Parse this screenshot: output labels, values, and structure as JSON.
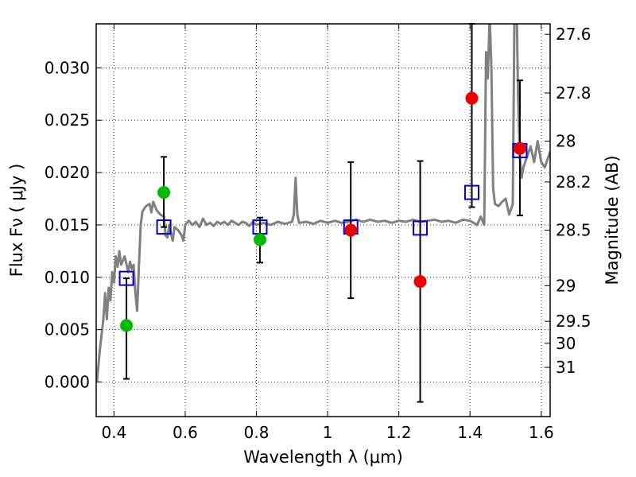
{
  "chart_data": {
    "type": "scatter",
    "xlabel": "Wavelength  λ (μm)",
    "ylabel": "Flux  Fν  ( μJy )",
    "y2label": "Magnitude (AB)",
    "xlim": [
      0.35,
      1.625
    ],
    "ylim": [
      -0.0033,
      0.0342
    ],
    "grid": true,
    "x_ticks": [
      0.4,
      0.6,
      0.8,
      1.0,
      1.2,
      1.4,
      1.6
    ],
    "x_tick_labels": [
      "0.4",
      "0.6",
      "0.8",
      "1",
      "1.2",
      "1.4",
      "1.6"
    ],
    "y_ticks": [
      0.0,
      0.005,
      0.01,
      0.015,
      0.02,
      0.025,
      0.03
    ],
    "y_tick_labels": [
      "0.000",
      "0.005",
      "0.010",
      "0.015",
      "0.020",
      "0.025",
      "0.030"
    ],
    "y2_ticks": [
      {
        "label": "27.6",
        "flux": 0.0332
      },
      {
        "label": "27.8",
        "flux": 0.0276
      },
      {
        "label": "28",
        "flux": 0.023
      },
      {
        "label": "28.2",
        "flux": 0.0191
      },
      {
        "label": "28.5",
        "flux": 0.0145
      },
      {
        "label": "29",
        "flux": 0.0092
      },
      {
        "label": "29.5",
        "flux": 0.0058
      },
      {
        "label": "30",
        "flux": 0.0037
      },
      {
        "label": "31",
        "flux": 0.0014
      }
    ],
    "model_spectrum": {
      "color": "#808080",
      "points": [
        [
          0.352,
          0.0
        ],
        [
          0.36,
          0.003
        ],
        [
          0.37,
          0.006
        ],
        [
          0.375,
          0.0085
        ],
        [
          0.38,
          0.006
        ],
        [
          0.385,
          0.009
        ],
        [
          0.39,
          0.0078
        ],
        [
          0.395,
          0.0105
        ],
        [
          0.4,
          0.0095
        ],
        [
          0.405,
          0.012
        ],
        [
          0.41,
          0.011
        ],
        [
          0.415,
          0.0125
        ],
        [
          0.42,
          0.0112
        ],
        [
          0.43,
          0.012
        ],
        [
          0.44,
          0.0105
        ],
        [
          0.445,
          0.0115
        ],
        [
          0.45,
          0.0108
        ],
        [
          0.455,
          0.0112
        ],
        [
          0.46,
          0.0085
        ],
        [
          0.465,
          0.0068
        ],
        [
          0.47,
          0.011
        ],
        [
          0.475,
          0.015
        ],
        [
          0.48,
          0.0163
        ],
        [
          0.49,
          0.0168
        ],
        [
          0.5,
          0.017
        ],
        [
          0.505,
          0.0162
        ],
        [
          0.51,
          0.0172
        ],
        [
          0.52,
          0.0164
        ],
        [
          0.53,
          0.016
        ],
        [
          0.54,
          0.0158
        ],
        [
          0.545,
          0.014
        ],
        [
          0.55,
          0.0138
        ],
        [
          0.555,
          0.015
        ],
        [
          0.56,
          0.0142
        ],
        [
          0.565,
          0.0135
        ],
        [
          0.57,
          0.0148
        ],
        [
          0.58,
          0.0145
        ],
        [
          0.59,
          0.014
        ],
        [
          0.595,
          0.0135
        ],
        [
          0.6,
          0.015
        ],
        [
          0.61,
          0.0154
        ],
        [
          0.62,
          0.015
        ],
        [
          0.63,
          0.0153
        ],
        [
          0.64,
          0.0148
        ],
        [
          0.65,
          0.0156
        ],
        [
          0.66,
          0.015
        ],
        [
          0.67,
          0.0152
        ],
        [
          0.68,
          0.0149
        ],
        [
          0.69,
          0.0153
        ],
        [
          0.7,
          0.0151
        ],
        [
          0.71,
          0.0153
        ],
        [
          0.72,
          0.015
        ],
        [
          0.73,
          0.0154
        ],
        [
          0.74,
          0.0152
        ],
        [
          0.75,
          0.015
        ],
        [
          0.76,
          0.0153
        ],
        [
          0.77,
          0.0152
        ],
        [
          0.78,
          0.0149
        ],
        [
          0.79,
          0.0153
        ],
        [
          0.8,
          0.015
        ],
        [
          0.82,
          0.0152
        ],
        [
          0.84,
          0.015
        ],
        [
          0.86,
          0.0153
        ],
        [
          0.88,
          0.0151
        ],
        [
          0.9,
          0.0153
        ],
        [
          0.905,
          0.016
        ],
        [
          0.91,
          0.0195
        ],
        [
          0.915,
          0.016
        ],
        [
          0.92,
          0.0152
        ],
        [
          0.94,
          0.0153
        ],
        [
          0.96,
          0.0151
        ],
        [
          0.98,
          0.0154
        ],
        [
          1.0,
          0.0152
        ],
        [
          1.02,
          0.0154
        ],
        [
          1.04,
          0.0152
        ],
        [
          1.06,
          0.0153
        ],
        [
          1.08,
          0.0155
        ],
        [
          1.1,
          0.0153
        ],
        [
          1.12,
          0.0155
        ],
        [
          1.14,
          0.0153
        ],
        [
          1.16,
          0.0154
        ],
        [
          1.18,
          0.0152
        ],
        [
          1.2,
          0.0154
        ],
        [
          1.22,
          0.0153
        ],
        [
          1.24,
          0.0155
        ],
        [
          1.26,
          0.0153
        ],
        [
          1.28,
          0.0154
        ],
        [
          1.3,
          0.0155
        ],
        [
          1.32,
          0.0153
        ],
        [
          1.34,
          0.0154
        ],
        [
          1.36,
          0.0152
        ],
        [
          1.38,
          0.0155
        ],
        [
          1.4,
          0.0154
        ],
        [
          1.42,
          0.015
        ],
        [
          1.43,
          0.0158
        ],
        [
          1.44,
          0.015
        ],
        [
          1.445,
          0.0315
        ],
        [
          1.45,
          0.029
        ],
        [
          1.455,
          0.035
        ],
        [
          1.46,
          0.03
        ],
        [
          1.465,
          0.0185
        ],
        [
          1.47,
          0.017
        ],
        [
          1.48,
          0.0168
        ],
        [
          1.49,
          0.0172
        ],
        [
          1.5,
          0.0175
        ],
        [
          1.51,
          0.016
        ],
        [
          1.52,
          0.017
        ],
        [
          1.525,
          0.036
        ],
        [
          1.53,
          0.038
        ],
        [
          1.535,
          0.027
        ],
        [
          1.54,
          0.0215
        ],
        [
          1.545,
          0.0195
        ],
        [
          1.55,
          0.0205
        ],
        [
          1.56,
          0.0215
        ],
        [
          1.57,
          0.0225
        ],
        [
          1.58,
          0.021
        ],
        [
          1.59,
          0.023
        ],
        [
          1.6,
          0.021
        ],
        [
          1.61,
          0.0205
        ],
        [
          1.625,
          0.022
        ]
      ]
    },
    "series": [
      {
        "marker": "open-square",
        "color": "#0000cc",
        "points": [
          {
            "x": 0.435,
            "y": 0.0099,
            "yerr_lo": 0.0003,
            "yerr_hi": 0.0099
          },
          {
            "x": 0.54,
            "y": 0.0148,
            "yerr_lo": 0.0148,
            "yerr_hi": 0.0215
          },
          {
            "x": 0.81,
            "y": 0.0148,
            "yerr_lo": 0.0114,
            "yerr_hi": 0.0157
          },
          {
            "x": 1.065,
            "y": 0.0148,
            "yerr_lo": 0.008,
            "yerr_hi": 0.021
          },
          {
            "x": 1.26,
            "y": 0.0147,
            "yerr_lo": -0.0019,
            "yerr_hi": 0.0211
          },
          {
            "x": 1.405,
            "y": 0.0181,
            "yerr_lo": 0.0167,
            "yerr_hi": 0.0342
          },
          {
            "x": 1.54,
            "y": 0.0221,
            "yerr_lo": 0.0159,
            "yerr_hi": 0.0288
          }
        ]
      },
      {
        "marker": "filled-circle",
        "color": "#00bb00",
        "points": [
          {
            "x": 0.435,
            "y": 0.0054
          },
          {
            "x": 0.54,
            "y": 0.0181
          },
          {
            "x": 0.81,
            "y": 0.0136
          }
        ]
      },
      {
        "marker": "filled-circle",
        "color": "#ee0000",
        "points": [
          {
            "x": 1.065,
            "y": 0.0145
          },
          {
            "x": 1.26,
            "y": 0.0096
          },
          {
            "x": 1.405,
            "y": 0.0271
          },
          {
            "x": 1.54,
            "y": 0.0223
          }
        ]
      }
    ]
  }
}
